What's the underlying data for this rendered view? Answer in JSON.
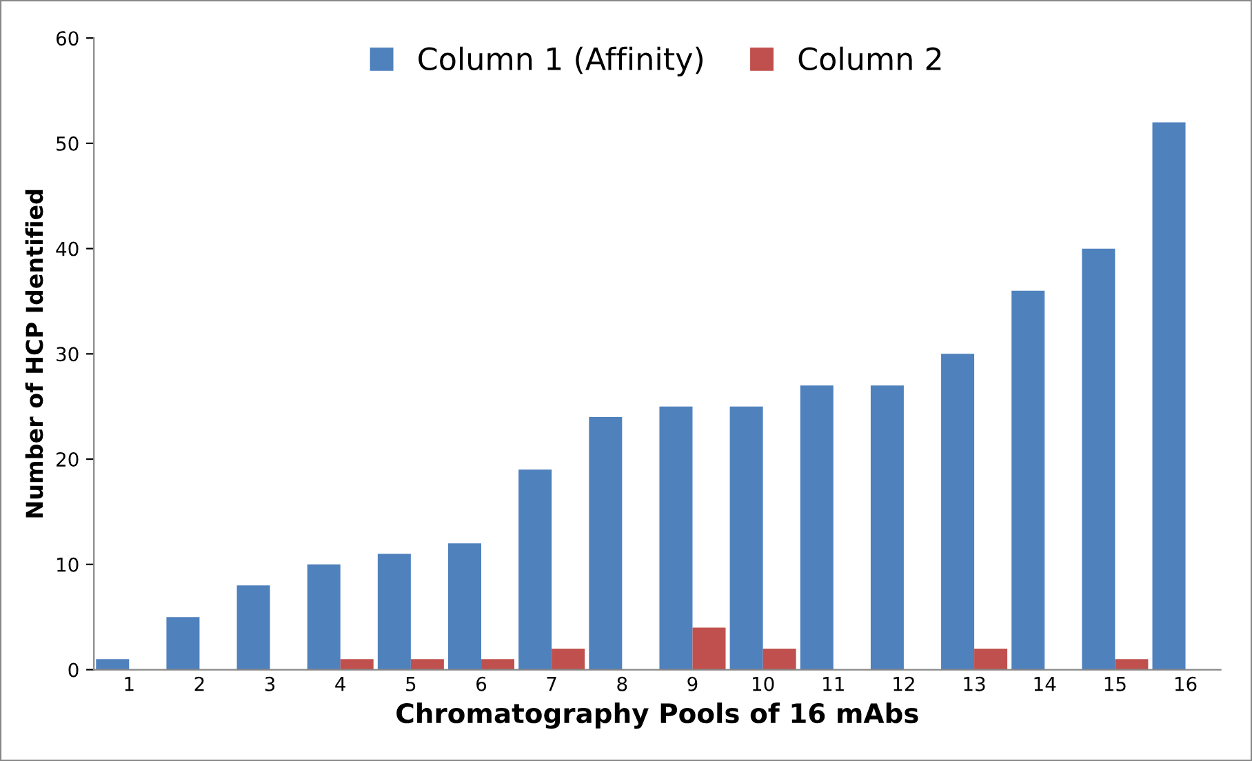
{
  "chart_data": {
    "type": "bar",
    "xlabel": "Chromatography Pools of 16 mAbs",
    "ylabel": "Number of HCP Identified",
    "categories": [
      "1",
      "2",
      "3",
      "4",
      "5",
      "6",
      "7",
      "8",
      "9",
      "10",
      "11",
      "12",
      "13",
      "14",
      "15",
      "16"
    ],
    "series": [
      {
        "name": "Column 1 (Affinity)",
        "color": "#4f81bd",
        "values": [
          1,
          5,
          8,
          10,
          11,
          12,
          19,
          24,
          25,
          25,
          27,
          27,
          30,
          36,
          40,
          52
        ]
      },
      {
        "name": "Column 2",
        "color": "#c0504d",
        "values": [
          null,
          null,
          null,
          1,
          1,
          1,
          2,
          null,
          4,
          2,
          null,
          null,
          2,
          null,
          1,
          null
        ]
      }
    ],
    "ylim": [
      0,
      60
    ],
    "yticks": [
      0,
      10,
      20,
      30,
      40,
      50,
      60
    ],
    "grid": false,
    "legend": "top"
  }
}
